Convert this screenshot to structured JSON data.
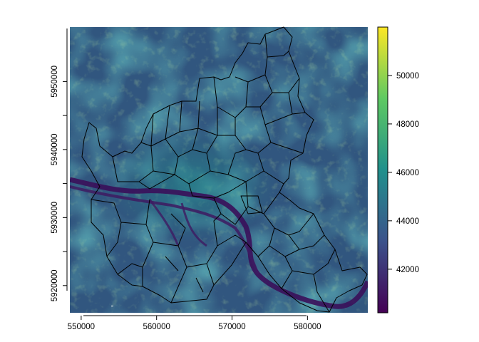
{
  "map": {
    "type": "raster",
    "colormap": "viridis",
    "colors": {
      "low": "#440154",
      "mid_low": "#3b528b",
      "mid": "#21908c",
      "mid_high": "#5ec962",
      "high": "#fde725",
      "boundary": "#000000"
    },
    "x_ticks": [
      "550000",
      "560000",
      "570000",
      "580000"
    ],
    "x_tick_values": [
      550000,
      560000,
      570000,
      580000
    ],
    "x_range": [
      548500,
      588000
    ],
    "y_ticks": [
      "5920000",
      "5930000",
      "5940000",
      "5950000"
    ],
    "y_tick_values": [
      5920000,
      5930000,
      5940000,
      5950000
    ],
    "y_range": [
      5916000,
      5958000
    ],
    "legend": {
      "ticks": [
        "42000",
        "44000",
        "46000",
        "48000",
        "50000"
      ],
      "tick_values": [
        42000,
        44000,
        46000,
        48000,
        50000
      ],
      "range": [
        40200,
        52000
      ],
      "placement": "right"
    }
  },
  "chart_data": {
    "type": "heatmap",
    "title": "",
    "xlabel": "",
    "ylabel": "",
    "xlim": [
      548500,
      588000
    ],
    "ylim": [
      5916000,
      5958000
    ],
    "colorbar_range": [
      40200,
      52000
    ],
    "colorbar_ticks": [
      42000,
      44000,
      46000,
      48000,
      50000
    ],
    "grid": false,
    "legend_position": "right"
  }
}
